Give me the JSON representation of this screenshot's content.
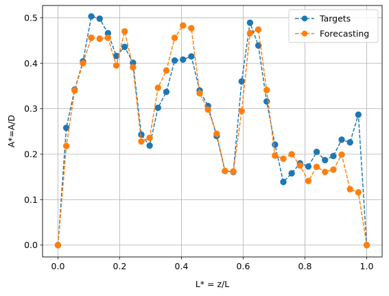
{
  "chart_data": {
    "type": "line",
    "xlabel": "L* = z/L",
    "ylabel": "A*=A/D",
    "xlim": [
      -0.05,
      1.05
    ],
    "ylim": [
      -0.026,
      0.527
    ],
    "xticks": [
      0.0,
      0.2,
      0.4,
      0.6,
      0.8,
      1.0
    ],
    "xtick_labels": [
      "0.0",
      "0.2",
      "0.4",
      "0.6",
      "0.8",
      "1.0"
    ],
    "yticks": [
      0.0,
      0.1,
      0.2,
      0.3,
      0.4,
      0.5
    ],
    "ytick_labels": [
      "0.0",
      "0.1",
      "0.2",
      "0.3",
      "0.4",
      "0.5"
    ],
    "grid": true,
    "legend_position": "top-right",
    "x": [
      0.0,
      0.027,
      0.054,
      0.081,
      0.108,
      0.135,
      0.162,
      0.189,
      0.216,
      0.243,
      0.27,
      0.297,
      0.324,
      0.351,
      0.378,
      0.405,
      0.432,
      0.459,
      0.486,
      0.514,
      0.541,
      0.568,
      0.595,
      0.622,
      0.649,
      0.676,
      0.703,
      0.73,
      0.757,
      0.784,
      0.811,
      0.838,
      0.865,
      0.892,
      0.919,
      0.946,
      0.973,
      1.0
    ],
    "series": [
      {
        "name": "Targets",
        "color": "#1f77b4",
        "marker": "circle",
        "linestyle": "dashed",
        "values": [
          0.0,
          0.258,
          0.342,
          0.404,
          0.503,
          0.498,
          0.466,
          0.416,
          0.436,
          0.401,
          0.243,
          0.219,
          0.302,
          0.337,
          0.406,
          0.408,
          0.415,
          0.34,
          0.306,
          0.24,
          0.163,
          0.161,
          0.36,
          0.489,
          0.439,
          0.316,
          0.221,
          0.139,
          0.158,
          0.18,
          0.173,
          0.205,
          0.187,
          0.196,
          0.232,
          0.226,
          0.287,
          0.0
        ]
      },
      {
        "name": "Forecasting",
        "color": "#ff7f0e",
        "marker": "circle",
        "linestyle": "dashed",
        "values": [
          0.0,
          0.218,
          0.34,
          0.4,
          0.456,
          0.454,
          0.456,
          0.395,
          0.47,
          0.391,
          0.228,
          0.236,
          0.346,
          0.384,
          0.456,
          0.483,
          0.477,
          0.334,
          0.298,
          0.245,
          0.163,
          0.162,
          0.295,
          0.466,
          0.474,
          0.341,
          0.197,
          0.19,
          0.2,
          0.175,
          0.141,
          0.172,
          0.161,
          0.166,
          0.199,
          0.123,
          0.116,
          0.0
        ]
      }
    ]
  }
}
